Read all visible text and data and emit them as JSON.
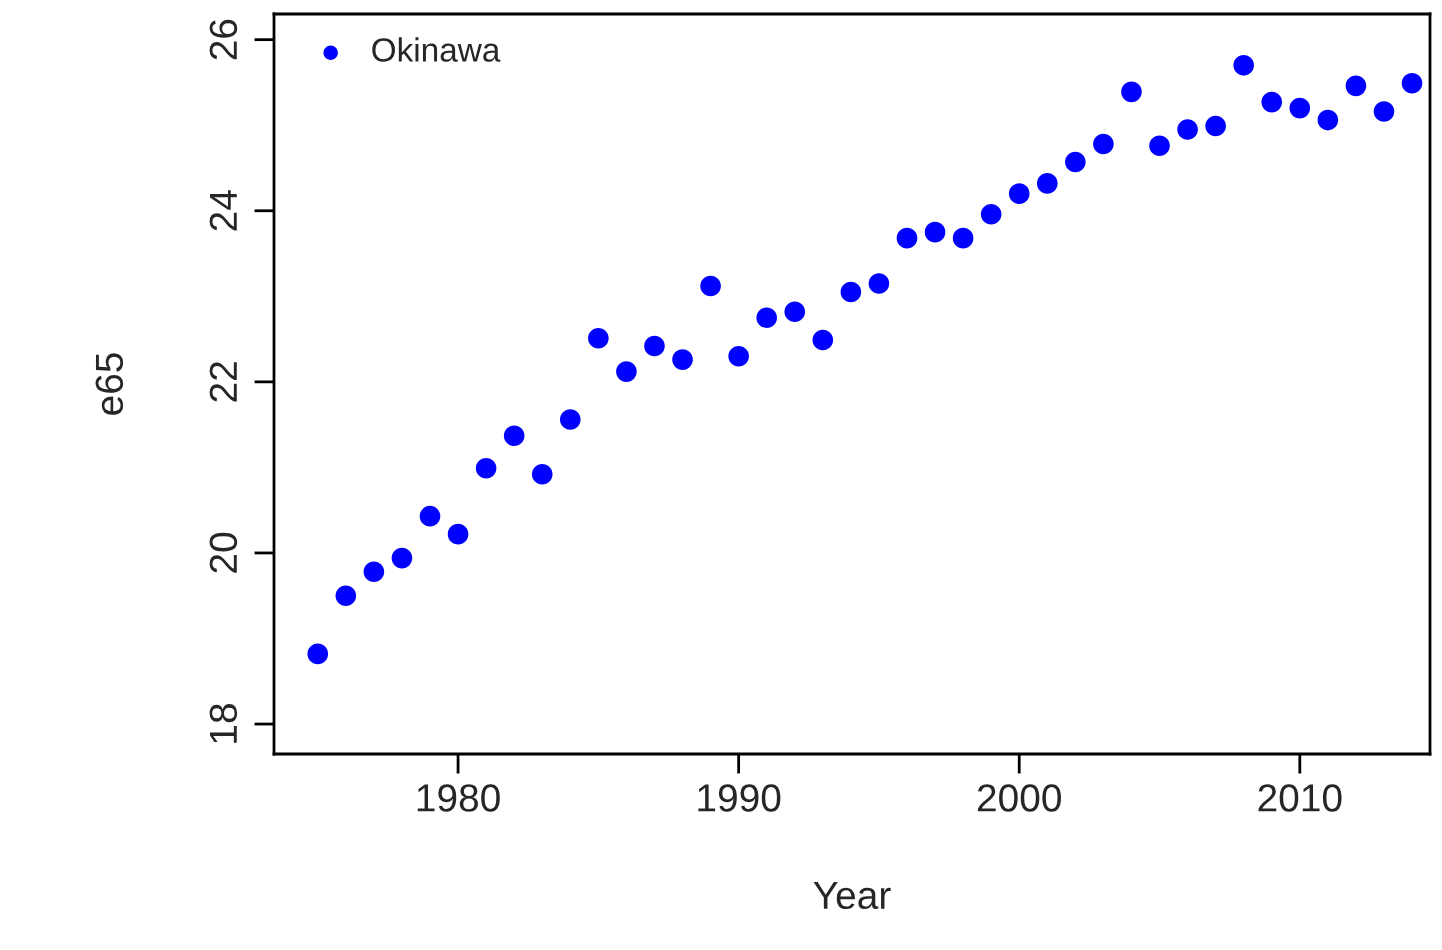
{
  "chart_data": {
    "type": "scatter",
    "xlabel": "Year",
    "ylabel": "e65",
    "x": [
      1975,
      1976,
      1977,
      1978,
      1979,
      1980,
      1981,
      1982,
      1983,
      1984,
      1985,
      1986,
      1987,
      1988,
      1989,
      1990,
      1991,
      1992,
      1993,
      1994,
      1995,
      1996,
      1997,
      1998,
      1999,
      2000,
      2001,
      2002,
      2003,
      2004,
      2005,
      2006,
      2007,
      2008,
      2009,
      2010,
      2011,
      2012,
      2013,
      2014
    ],
    "series": [
      {
        "name": "Okinawa",
        "color": "#0000ff",
        "values": [
          18.82,
          19.5,
          19.78,
          19.94,
          20.43,
          20.22,
          20.99,
          21.37,
          20.92,
          21.56,
          22.51,
          22.12,
          22.42,
          22.26,
          23.12,
          22.3,
          22.75,
          22.82,
          22.49,
          23.05,
          23.15,
          23.68,
          23.75,
          23.68,
          23.96,
          24.2,
          24.32,
          24.57,
          24.78,
          25.39,
          24.76,
          24.95,
          24.99,
          25.7,
          25.27,
          25.2,
          25.06,
          25.46,
          25.16,
          25.49
        ]
      }
    ],
    "xlim": [
      1973.44,
      2014.64
    ],
    "ylim": [
      17.65,
      26.3
    ],
    "xticks": [
      1980,
      1990,
      2000,
      2010
    ],
    "yticks": [
      18,
      20,
      22,
      24,
      26
    ],
    "marker": "circle",
    "grid": false,
    "legend": "top left"
  }
}
